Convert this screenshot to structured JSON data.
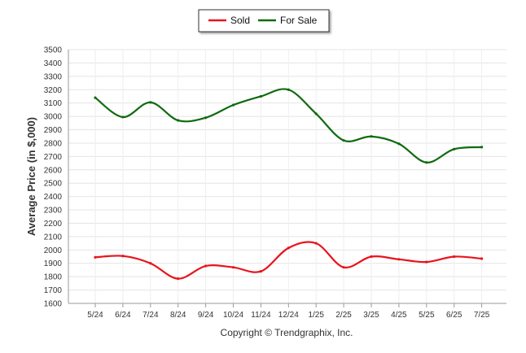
{
  "chart_data": {
    "type": "line",
    "categories": [
      "5/24",
      "6/24",
      "7/24",
      "8/24",
      "9/24",
      "10/24",
      "11/24",
      "12/24",
      "1/25",
      "2/25",
      "3/25",
      "4/25",
      "5/25",
      "6/25",
      "7/25"
    ],
    "series": [
      {
        "name": "Sold",
        "color": "#e8141b",
        "values": [
          1945,
          1955,
          1900,
          1785,
          1880,
          1870,
          1840,
          2015,
          2050,
          1870,
          1950,
          1930,
          1910,
          1950,
          1935
        ]
      },
      {
        "name": "For Sale",
        "color": "#0f6b0f",
        "values": [
          3140,
          2995,
          3105,
          2970,
          2990,
          3085,
          3150,
          3200,
          3020,
          2820,
          2850,
          2795,
          2655,
          2755,
          2770
        ]
      }
    ],
    "title": "",
    "xlabel": "",
    "ylabel": "Average Price (in $,000)",
    "ylim": [
      1600,
      3500
    ],
    "yticks": [
      1600,
      1700,
      1800,
      1900,
      2000,
      2100,
      2200,
      2300,
      2400,
      2500,
      2600,
      2700,
      2800,
      2900,
      3000,
      3100,
      3200,
      3300,
      3400,
      3500
    ],
    "grid": true,
    "legend_placement": "top-center"
  },
  "footer": {
    "copyright": "Copyright © Trendgraphix, Inc."
  }
}
